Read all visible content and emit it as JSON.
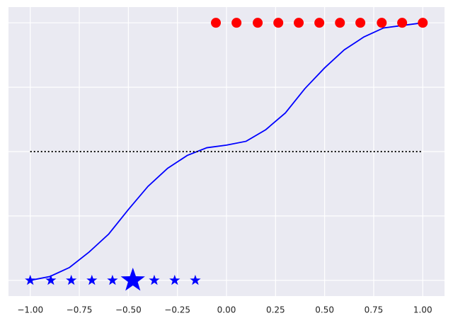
{
  "chart_data": {
    "type": "line",
    "xlim": [
      -1.1,
      1.1
    ],
    "ylim": [
      -1.1,
      1.1
    ],
    "xticks": [
      {
        "value": -1,
        "label": "−1.00"
      },
      {
        "value": -0.75,
        "label": "−0.75"
      },
      {
        "value": -0.5,
        "label": "−0.50"
      },
      {
        "value": -0.25,
        "label": "−0.25"
      },
      {
        "value": 0,
        "label": "0.00"
      },
      {
        "value": 0.25,
        "label": "0.25"
      },
      {
        "value": 0.5,
        "label": "0.50"
      },
      {
        "value": 0.75,
        "label": "0.75"
      },
      {
        "value": 1,
        "label": "1.00"
      }
    ],
    "yticks": [
      -1,
      -0.5,
      0,
      0.5,
      1
    ],
    "grid": true,
    "series": [
      {
        "color": "#0000ff",
        "style": "solid",
        "x": [
          -1,
          -0.9,
          -0.8,
          -0.7,
          -0.6,
          -0.5,
          -0.4,
          -0.3,
          -0.2,
          -0.1,
          0,
          0.1,
          0.2,
          0.3,
          0.4,
          0.5,
          0.6,
          0.7,
          0.8,
          0.9,
          1
        ],
        "values": [
          -1,
          -0.97,
          -0.9,
          -0.78,
          -0.64,
          -0.45,
          -0.27,
          -0.13,
          -0.03,
          0.03,
          0.05,
          0.08,
          0.17,
          0.3,
          0.49,
          0.65,
          0.79,
          0.89,
          0.96,
          0.98,
          1
        ]
      },
      {
        "color": "#000000",
        "style": "dotted",
        "x": [
          -1,
          1
        ],
        "values": [
          0,
          0
        ]
      },
      {
        "color": "#ff0000",
        "style": "circle",
        "x": [
          -0.054,
          0.051,
          0.159,
          0.264,
          0.368,
          0.473,
          0.578,
          0.682,
          0.791,
          0.895,
          1
        ],
        "values": [
          1,
          1,
          1,
          1,
          1,
          1,
          1,
          1,
          1,
          1,
          1
        ]
      },
      {
        "color": "#0000ff",
        "style": "star",
        "x": [
          -1,
          -0.895,
          -0.791,
          -0.686,
          -0.581,
          -0.477,
          -0.368,
          -0.264,
          -0.159
        ],
        "values": [
          -1,
          -1,
          -1,
          -1,
          -1,
          -1,
          -1,
          -1,
          -1
        ],
        "sizes": [
          8,
          8,
          8,
          8,
          8,
          18,
          8,
          8,
          8
        ]
      }
    ]
  }
}
